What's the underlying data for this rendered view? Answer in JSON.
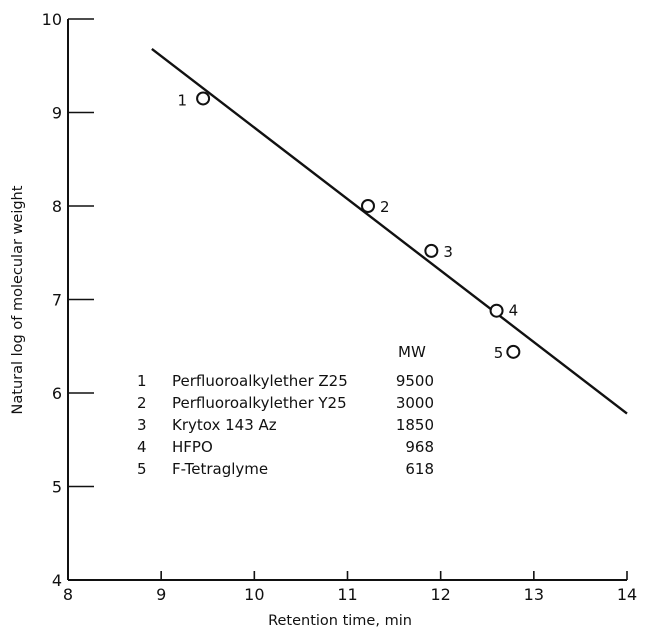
{
  "chart_data": {
    "type": "scatter",
    "title": "",
    "xlabel": "Retention time, min",
    "ylabel": "Natural log of molecular weight",
    "xlim": [
      8,
      14
    ],
    "ylim": [
      4,
      10
    ],
    "x_ticks": [
      8,
      9,
      10,
      11,
      12,
      13,
      14
    ],
    "y_ticks": [
      4,
      5,
      6,
      7,
      8,
      9,
      10
    ],
    "grid": false,
    "series": [
      {
        "points": [
          {
            "label": "1",
            "x": 9.45,
            "y": 9.15
          },
          {
            "label": "2",
            "x": 11.22,
            "y": 8.0
          },
          {
            "label": "3",
            "x": 11.9,
            "y": 7.52
          },
          {
            "label": "4",
            "x": 12.6,
            "y": 6.88
          },
          {
            "label": "5",
            "x": 12.78,
            "y": 6.44
          }
        ]
      }
    ],
    "fit_line": {
      "x": [
        8.9,
        14.0
      ],
      "y": [
        9.68,
        5.78
      ]
    },
    "legend": {
      "header": "MW",
      "entries": [
        {
          "number": "1",
          "name": "Perfluoroalkylether Z25",
          "mw": "9500"
        },
        {
          "number": "2",
          "name": "Perfluoroalkylether Y25",
          "mw": "3000"
        },
        {
          "number": "3",
          "name": "Krytox 143 Az",
          "mw": "1850"
        },
        {
          "number": "4",
          "name": "HFPO",
          "mw": "968"
        },
        {
          "number": "5",
          "name": "F-Tetraglyme",
          "mw": "618"
        }
      ]
    }
  }
}
